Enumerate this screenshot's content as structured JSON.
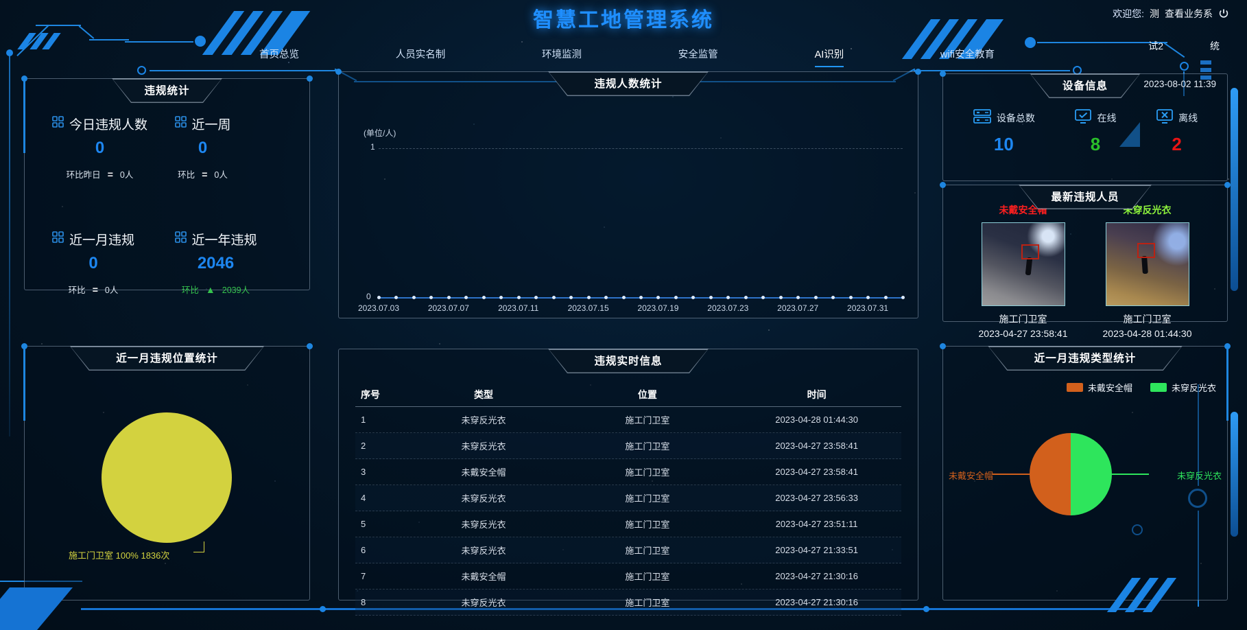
{
  "app": {
    "title": "智慧工地管理系统"
  },
  "header": {
    "welcome_label": "欢迎您:",
    "username": "测",
    "business_link": "查看业务系",
    "power_icon": "power-icon",
    "corner_tag_left": "试2",
    "corner_tag_right": "统"
  },
  "nav": {
    "items": [
      {
        "label": "首页总览",
        "active": false
      },
      {
        "label": "人员实名制",
        "active": false
      },
      {
        "label": "环境监测",
        "active": false
      },
      {
        "label": "安全监管",
        "active": false
      },
      {
        "label": "AI识别",
        "active": true
      },
      {
        "label": "wifi安全教育",
        "active": false
      }
    ]
  },
  "violation_stats": {
    "title": "违规统计",
    "items": [
      {
        "label": "今日违规人数",
        "value": "0",
        "cmp_label": "环比昨日",
        "cmp_symbol": "=",
        "cmp_value": "0人",
        "trend": "flat"
      },
      {
        "label": "近一周",
        "value": "0",
        "cmp_label": "环比",
        "cmp_symbol": "=",
        "cmp_value": "0人",
        "trend": "flat"
      },
      {
        "label": "近一月违规",
        "value": "0",
        "cmp_label": "环比",
        "cmp_symbol": "=",
        "cmp_value": "0人",
        "trend": "flat"
      },
      {
        "label": "近一年违规",
        "value": "2046",
        "cmp_label": "环比",
        "cmp_symbol": "▲",
        "cmp_value": "2039人",
        "trend": "up"
      }
    ],
    "value_color": "#1d86f0",
    "up_color": "#35c44d"
  },
  "device_info": {
    "title": "设备信息",
    "timestamp": "2023-08-02 11:39",
    "items": [
      {
        "label": "设备总数",
        "value": "10",
        "color": "#1d86f0",
        "icon": "server-icon"
      },
      {
        "label": "在线",
        "value": "8",
        "color": "#2abf2a",
        "icon": "monitor-check-icon"
      },
      {
        "label": "离线",
        "value": "2",
        "color": "#e81414",
        "icon": "monitor-x-icon"
      }
    ]
  },
  "latest_violators": {
    "title": "最新违规人员",
    "cards": [
      {
        "type": "未戴安全帽",
        "type_color": "#ff1f1f",
        "location": "施工门卫室",
        "time": "2023-04-27 23:58:41"
      },
      {
        "type": "未穿反光衣",
        "type_color": "#8df23c",
        "location": "施工门卫室",
        "time": "2023-04-28 01:44:30"
      }
    ]
  },
  "realtime_table": {
    "title": "违规实时信息",
    "columns": [
      "序号",
      "类型",
      "位置",
      "时间"
    ],
    "rows": [
      [
        "1",
        "未穿反光衣",
        "施工门卫室",
        "2023-04-28 01:44:30"
      ],
      [
        "2",
        "未穿反光衣",
        "施工门卫室",
        "2023-04-27 23:58:41"
      ],
      [
        "3",
        "未戴安全帽",
        "施工门卫室",
        "2023-04-27 23:58:41"
      ],
      [
        "4",
        "未穿反光衣",
        "施工门卫室",
        "2023-04-27 23:56:33"
      ],
      [
        "5",
        "未穿反光衣",
        "施工门卫室",
        "2023-04-27 23:51:11"
      ],
      [
        "6",
        "未穿反光衣",
        "施工门卫室",
        "2023-04-27 21:33:51"
      ],
      [
        "7",
        "未戴安全帽",
        "施工门卫室",
        "2023-04-27 21:30:16"
      ],
      [
        "8",
        "未穿反光衣",
        "施工门卫室",
        "2023-04-27 21:30:16"
      ]
    ]
  },
  "chart_data": [
    {
      "id": "people_line",
      "type": "line",
      "title": "违规人数统计",
      "unit_label": "(单位/人)",
      "x_tick_labels": [
        "2023.07.03",
        "2023.07.07",
        "2023.07.11",
        "2023.07.15",
        "2023.07.19",
        "2023.07.23",
        "2023.07.27",
        "2023.07.31"
      ],
      "x_tick_indices": [
        0,
        4,
        8,
        12,
        16,
        20,
        24,
        28
      ],
      "n_points": 31,
      "x_range": [
        "2023.07.03",
        "2023.08.02"
      ],
      "values": [
        0,
        0,
        0,
        0,
        0,
        0,
        0,
        0,
        0,
        0,
        0,
        0,
        0,
        0,
        0,
        0,
        0,
        0,
        0,
        0,
        0,
        0,
        0,
        0,
        0,
        0,
        0,
        0,
        0,
        0,
        0
      ],
      "ylim": [
        0,
        1
      ],
      "yticks": [
        0,
        1
      ],
      "line_color": "#2d72c8",
      "grid": "dashed-line-at-1",
      "legend_position": "none"
    },
    {
      "id": "location_pie",
      "type": "pie",
      "title": "近一月违规位置统计",
      "slices": [
        {
          "label": "施工门卫室",
          "percent": 100,
          "count": 1836,
          "color": "#d3d23f"
        }
      ],
      "callout": "施工门卫室 100% 1836次",
      "legend_position": "none"
    },
    {
      "id": "type_pie",
      "type": "pie",
      "title": "近一月违规类型统计",
      "slices": [
        {
          "label": "未戴安全帽",
          "percent": 50,
          "color": "#d2601c"
        },
        {
          "label": "未穿反光衣",
          "percent": 50,
          "color": "#2ee55c"
        }
      ],
      "legend_position": "top-right"
    }
  ]
}
